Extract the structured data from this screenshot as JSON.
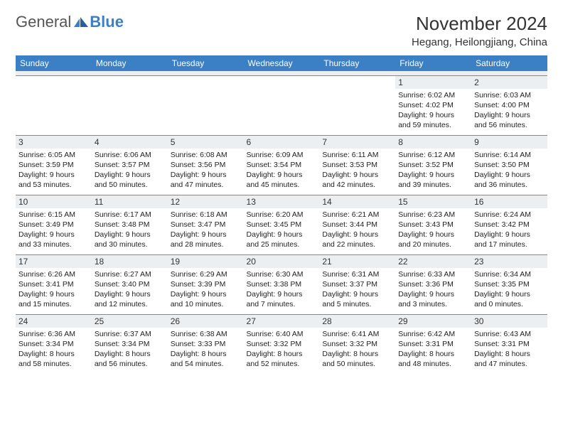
{
  "logo": {
    "general": "General",
    "blue": "Blue"
  },
  "title": "November 2024",
  "location": "Hegang, Heilongjiang, China",
  "colors": {
    "header_bg": "#3b7fc4",
    "header_text": "#ffffff",
    "daynum_bg": "#eceff2",
    "border": "#888888",
    "page_bg": "#ffffff"
  },
  "dayHeaders": [
    "Sunday",
    "Monday",
    "Tuesday",
    "Wednesday",
    "Thursday",
    "Friday",
    "Saturday"
  ],
  "weeks": [
    [
      {
        "n": "",
        "sr": "",
        "ss": "",
        "dl": ""
      },
      {
        "n": "",
        "sr": "",
        "ss": "",
        "dl": ""
      },
      {
        "n": "",
        "sr": "",
        "ss": "",
        "dl": ""
      },
      {
        "n": "",
        "sr": "",
        "ss": "",
        "dl": ""
      },
      {
        "n": "",
        "sr": "",
        "ss": "",
        "dl": ""
      },
      {
        "n": "1",
        "sr": "Sunrise: 6:02 AM",
        "ss": "Sunset: 4:02 PM",
        "dl": "Daylight: 9 hours and 59 minutes."
      },
      {
        "n": "2",
        "sr": "Sunrise: 6:03 AM",
        "ss": "Sunset: 4:00 PM",
        "dl": "Daylight: 9 hours and 56 minutes."
      }
    ],
    [
      {
        "n": "3",
        "sr": "Sunrise: 6:05 AM",
        "ss": "Sunset: 3:59 PM",
        "dl": "Daylight: 9 hours and 53 minutes."
      },
      {
        "n": "4",
        "sr": "Sunrise: 6:06 AM",
        "ss": "Sunset: 3:57 PM",
        "dl": "Daylight: 9 hours and 50 minutes."
      },
      {
        "n": "5",
        "sr": "Sunrise: 6:08 AM",
        "ss": "Sunset: 3:56 PM",
        "dl": "Daylight: 9 hours and 47 minutes."
      },
      {
        "n": "6",
        "sr": "Sunrise: 6:09 AM",
        "ss": "Sunset: 3:54 PM",
        "dl": "Daylight: 9 hours and 45 minutes."
      },
      {
        "n": "7",
        "sr": "Sunrise: 6:11 AM",
        "ss": "Sunset: 3:53 PM",
        "dl": "Daylight: 9 hours and 42 minutes."
      },
      {
        "n": "8",
        "sr": "Sunrise: 6:12 AM",
        "ss": "Sunset: 3:52 PM",
        "dl": "Daylight: 9 hours and 39 minutes."
      },
      {
        "n": "9",
        "sr": "Sunrise: 6:14 AM",
        "ss": "Sunset: 3:50 PM",
        "dl": "Daylight: 9 hours and 36 minutes."
      }
    ],
    [
      {
        "n": "10",
        "sr": "Sunrise: 6:15 AM",
        "ss": "Sunset: 3:49 PM",
        "dl": "Daylight: 9 hours and 33 minutes."
      },
      {
        "n": "11",
        "sr": "Sunrise: 6:17 AM",
        "ss": "Sunset: 3:48 PM",
        "dl": "Daylight: 9 hours and 30 minutes."
      },
      {
        "n": "12",
        "sr": "Sunrise: 6:18 AM",
        "ss": "Sunset: 3:47 PM",
        "dl": "Daylight: 9 hours and 28 minutes."
      },
      {
        "n": "13",
        "sr": "Sunrise: 6:20 AM",
        "ss": "Sunset: 3:45 PM",
        "dl": "Daylight: 9 hours and 25 minutes."
      },
      {
        "n": "14",
        "sr": "Sunrise: 6:21 AM",
        "ss": "Sunset: 3:44 PM",
        "dl": "Daylight: 9 hours and 22 minutes."
      },
      {
        "n": "15",
        "sr": "Sunrise: 6:23 AM",
        "ss": "Sunset: 3:43 PM",
        "dl": "Daylight: 9 hours and 20 minutes."
      },
      {
        "n": "16",
        "sr": "Sunrise: 6:24 AM",
        "ss": "Sunset: 3:42 PM",
        "dl": "Daylight: 9 hours and 17 minutes."
      }
    ],
    [
      {
        "n": "17",
        "sr": "Sunrise: 6:26 AM",
        "ss": "Sunset: 3:41 PM",
        "dl": "Daylight: 9 hours and 15 minutes."
      },
      {
        "n": "18",
        "sr": "Sunrise: 6:27 AM",
        "ss": "Sunset: 3:40 PM",
        "dl": "Daylight: 9 hours and 12 minutes."
      },
      {
        "n": "19",
        "sr": "Sunrise: 6:29 AM",
        "ss": "Sunset: 3:39 PM",
        "dl": "Daylight: 9 hours and 10 minutes."
      },
      {
        "n": "20",
        "sr": "Sunrise: 6:30 AM",
        "ss": "Sunset: 3:38 PM",
        "dl": "Daylight: 9 hours and 7 minutes."
      },
      {
        "n": "21",
        "sr": "Sunrise: 6:31 AM",
        "ss": "Sunset: 3:37 PM",
        "dl": "Daylight: 9 hours and 5 minutes."
      },
      {
        "n": "22",
        "sr": "Sunrise: 6:33 AM",
        "ss": "Sunset: 3:36 PM",
        "dl": "Daylight: 9 hours and 3 minutes."
      },
      {
        "n": "23",
        "sr": "Sunrise: 6:34 AM",
        "ss": "Sunset: 3:35 PM",
        "dl": "Daylight: 9 hours and 0 minutes."
      }
    ],
    [
      {
        "n": "24",
        "sr": "Sunrise: 6:36 AM",
        "ss": "Sunset: 3:34 PM",
        "dl": "Daylight: 8 hours and 58 minutes."
      },
      {
        "n": "25",
        "sr": "Sunrise: 6:37 AM",
        "ss": "Sunset: 3:34 PM",
        "dl": "Daylight: 8 hours and 56 minutes."
      },
      {
        "n": "26",
        "sr": "Sunrise: 6:38 AM",
        "ss": "Sunset: 3:33 PM",
        "dl": "Daylight: 8 hours and 54 minutes."
      },
      {
        "n": "27",
        "sr": "Sunrise: 6:40 AM",
        "ss": "Sunset: 3:32 PM",
        "dl": "Daylight: 8 hours and 52 minutes."
      },
      {
        "n": "28",
        "sr": "Sunrise: 6:41 AM",
        "ss": "Sunset: 3:32 PM",
        "dl": "Daylight: 8 hours and 50 minutes."
      },
      {
        "n": "29",
        "sr": "Sunrise: 6:42 AM",
        "ss": "Sunset: 3:31 PM",
        "dl": "Daylight: 8 hours and 48 minutes."
      },
      {
        "n": "30",
        "sr": "Sunrise: 6:43 AM",
        "ss": "Sunset: 3:31 PM",
        "dl": "Daylight: 8 hours and 47 minutes."
      }
    ]
  ]
}
